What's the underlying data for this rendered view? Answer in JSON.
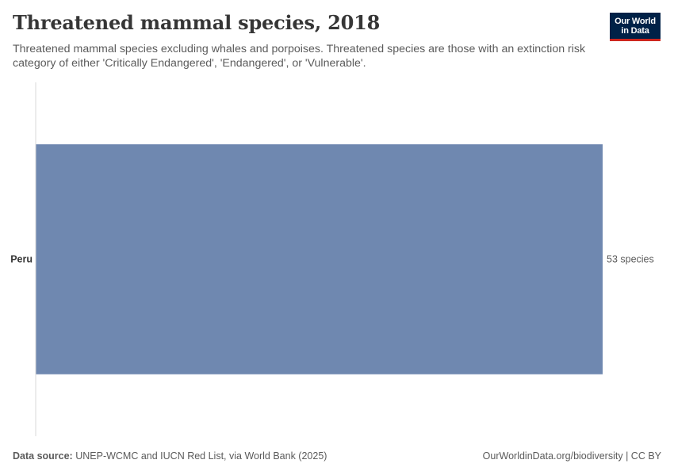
{
  "header": {
    "title": "Threatened mammal species, 2018",
    "subtitle": "Threatened mammal species excluding whales and porpoises. Threatened species are those with an extinction risk category of either 'Critically Endangered', 'Endangered', or 'Vulnerable'."
  },
  "logo": {
    "line1": "Our World",
    "line2": "in Data"
  },
  "footer": {
    "source_label": "Data source:",
    "source_text": "UNEP-WCMC and IUCN Red List, via World Bank (2025)",
    "url": "OurWorldinData.org/biodiversity | CC BY"
  },
  "colors": {
    "bar": "#6f88b0",
    "axis": "#d9d9d9",
    "logo_bg": "#002147",
    "logo_accent": "#ce261e"
  },
  "chart_data": {
    "type": "bar",
    "orientation": "horizontal",
    "categories": [
      "Peru"
    ],
    "values": [
      53
    ],
    "value_labels": [
      "53 species"
    ],
    "title": "Threatened mammal species, 2018",
    "xlabel": "",
    "ylabel": "",
    "xlim": [
      0,
      53
    ],
    "grid": false
  }
}
